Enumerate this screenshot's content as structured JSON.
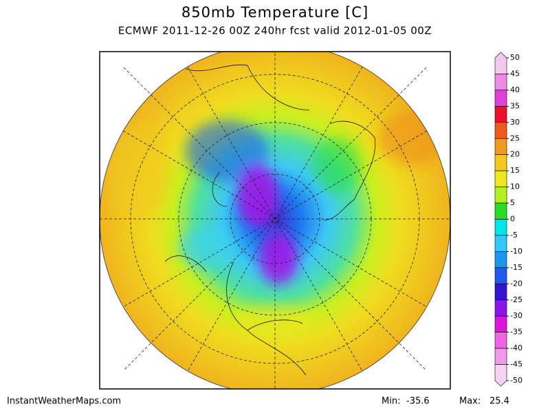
{
  "header": {
    "title": "850mb Temperature [C]",
    "subtitle": "ECMWF 2011-12-26 00Z 240hr fcst valid 2012-01-05 00Z"
  },
  "colorbar": {
    "labels": [
      50,
      45,
      40,
      35,
      30,
      25,
      20,
      15,
      10,
      5,
      0,
      -5,
      -10,
      -15,
      -20,
      -25,
      -30,
      -35,
      -40,
      -45,
      -50
    ],
    "colors": [
      "#f5c8f0",
      "#ee8ae6",
      "#e040d8",
      "#e8102a",
      "#f05a1c",
      "#f09a20",
      "#f5c81e",
      "#f0e81e",
      "#b4f01e",
      "#28dc28",
      "#00e6e6",
      "#32c8ff",
      "#1e96f0",
      "#1e5af0",
      "#3214d2",
      "#8c14e6",
      "#dc14dc",
      "#f064e6",
      "#f09aea",
      "#f8d2f4"
    ]
  },
  "footer": {
    "site": "InstantWeatherMaps.com",
    "min_label": "Min:",
    "min_value": "-35.6",
    "max_label": "Max:",
    "max_value": "25.4"
  }
}
